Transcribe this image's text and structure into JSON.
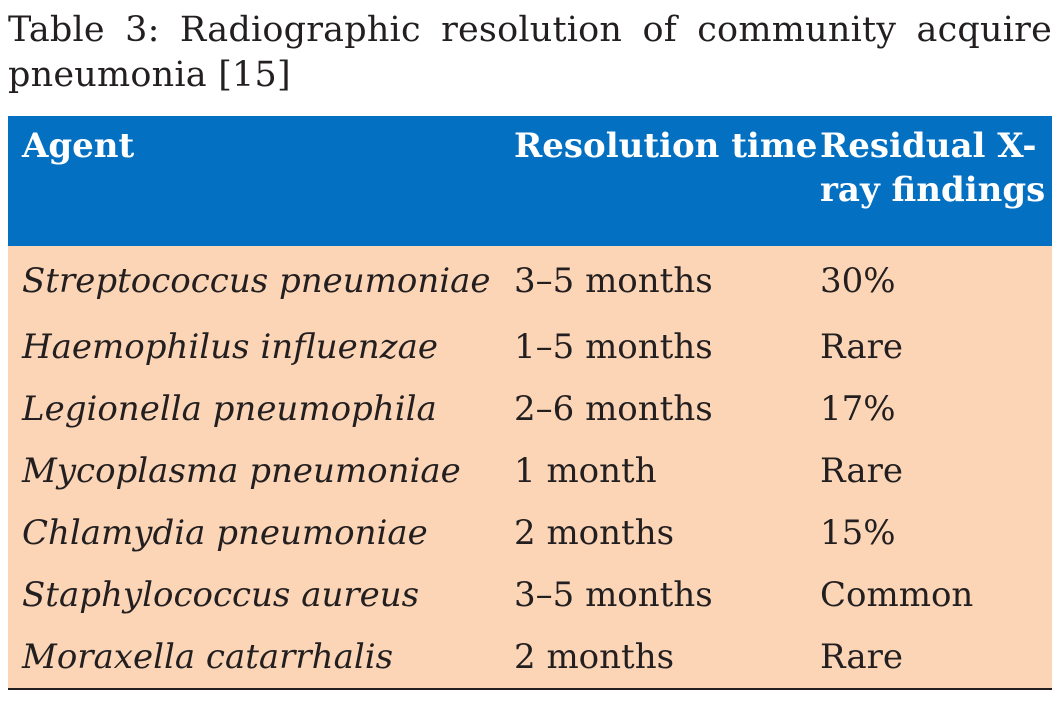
{
  "caption": "Table 3: Radiographic resolution of community acquire pneumonia [15]",
  "table": {
    "header_bg": "#0470c2",
    "body_bg": "#fbd5b6",
    "columns": [
      "Agent",
      "Resolution time",
      "Residual X-ray findings"
    ],
    "rows": [
      {
        "agent": "Streptococcus pneumoniae",
        "time": "3–5 months",
        "residual": "30%"
      },
      {
        "agent": "Haemophilus influenzae",
        "time": "1–5 months",
        "residual": "Rare"
      },
      {
        "agent": "Legionella pneumophila",
        "time": "2–6 months",
        "residual": "17%"
      },
      {
        "agent": "Mycoplasma pneumoniae",
        "time": "1 month",
        "residual": "Rare"
      },
      {
        "agent": "Chlamydia pneumoniae",
        "time": "2 months",
        "residual": "15%"
      },
      {
        "agent": "Staphylococcus aureus",
        "time": "3–5 months",
        "residual": "Common"
      },
      {
        "agent": "Moraxella catarrhalis",
        "time": "2 months",
        "residual": "Rare"
      }
    ]
  }
}
